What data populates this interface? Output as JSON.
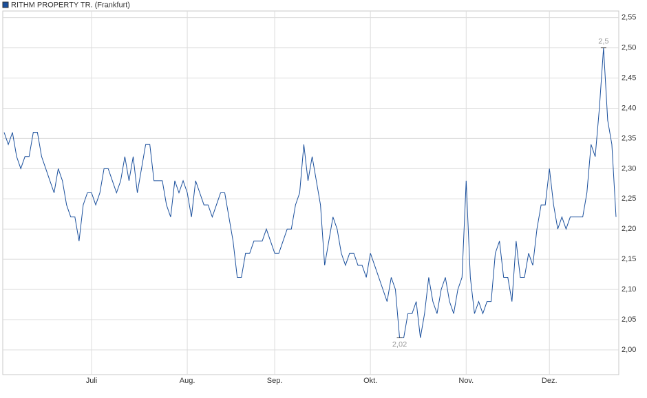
{
  "chart_data": {
    "type": "line",
    "series": [
      {
        "name": "RITHM PROPERTY TR. (Frankfurt)",
        "color": "#1a4f9c",
        "values": [
          2.36,
          2.34,
          2.36,
          2.32,
          2.3,
          2.32,
          2.32,
          2.36,
          2.36,
          2.32,
          2.3,
          2.28,
          2.26,
          2.3,
          2.28,
          2.24,
          2.22,
          2.22,
          2.18,
          2.24,
          2.26,
          2.26,
          2.24,
          2.26,
          2.3,
          2.3,
          2.28,
          2.26,
          2.28,
          2.32,
          2.28,
          2.32,
          2.26,
          2.3,
          2.34,
          2.34,
          2.28,
          2.28,
          2.28,
          2.24,
          2.22,
          2.28,
          2.26,
          2.28,
          2.26,
          2.22,
          2.28,
          2.26,
          2.24,
          2.24,
          2.22,
          2.24,
          2.26,
          2.26,
          2.22,
          2.18,
          2.12,
          2.12,
          2.16,
          2.16,
          2.18,
          2.18,
          2.18,
          2.2,
          2.18,
          2.16,
          2.16,
          2.18,
          2.2,
          2.2,
          2.24,
          2.26,
          2.34,
          2.28,
          2.32,
          2.28,
          2.24,
          2.14,
          2.18,
          2.22,
          2.2,
          2.16,
          2.14,
          2.16,
          2.16,
          2.14,
          2.14,
          2.12,
          2.16,
          2.14,
          2.12,
          2.1,
          2.08,
          2.12,
          2.1,
          2.02,
          2.02,
          2.06,
          2.06,
          2.08,
          2.02,
          2.06,
          2.12,
          2.08,
          2.06,
          2.1,
          2.12,
          2.08,
          2.06,
          2.1,
          2.12,
          2.28,
          2.12,
          2.06,
          2.08,
          2.06,
          2.08,
          2.08,
          2.16,
          2.18,
          2.12,
          2.12,
          2.08,
          2.18,
          2.12,
          2.12,
          2.16,
          2.14,
          2.2,
          2.24,
          2.24,
          2.3,
          2.24,
          2.2,
          2.22,
          2.2,
          2.22,
          2.22,
          2.22,
          2.22,
          2.26,
          2.34,
          2.32,
          2.4,
          2.5,
          2.38,
          2.34,
          2.22
        ],
        "value_labels": [
          null,
          null,
          null,
          null,
          null,
          null,
          null,
          null,
          null,
          null,
          null,
          null,
          null,
          null,
          null,
          null,
          null,
          null,
          null,
          null,
          null,
          null,
          null,
          null,
          null,
          null,
          null,
          null,
          null,
          null,
          null,
          null,
          null,
          null,
          null,
          null,
          null,
          null,
          null,
          null,
          null,
          null,
          null,
          null,
          null,
          null,
          null,
          null,
          null,
          null,
          null,
          null,
          null,
          null,
          null,
          null,
          null,
          null,
          null,
          null,
          null,
          null,
          null,
          null,
          null,
          null,
          null,
          null,
          null,
          null,
          null,
          null,
          null,
          null,
          null,
          null,
          null,
          null,
          null,
          null,
          null,
          null,
          null,
          null,
          null,
          null,
          null,
          null,
          null,
          null,
          null,
          null,
          null,
          null,
          null,
          "2,02",
          null,
          null,
          null,
          null,
          null,
          null,
          null,
          null,
          null,
          null,
          null,
          null,
          null,
          null,
          null,
          null,
          null,
          null,
          null,
          null,
          null,
          null,
          null,
          null,
          null,
          null,
          null,
          null,
          null,
          null,
          null,
          null,
          null,
          null,
          null,
          null,
          null,
          null,
          null,
          null,
          null,
          null,
          null,
          null,
          null,
          null,
          null,
          null,
          "2,5",
          null,
          null,
          null
        ]
      }
    ],
    "categories": [
      null,
      null,
      null,
      null,
      null,
      null,
      null,
      null,
      null,
      null,
      null,
      null,
      null,
      null,
      null,
      null,
      null,
      null,
      null,
      null,
      null,
      "Juli",
      null,
      null,
      null,
      null,
      null,
      null,
      null,
      null,
      null,
      null,
      null,
      null,
      null,
      null,
      null,
      null,
      null,
      null,
      null,
      null,
      null,
      null,
      "Aug.",
      null,
      null,
      null,
      null,
      null,
      null,
      null,
      null,
      null,
      null,
      null,
      null,
      null,
      null,
      null,
      null,
      null,
      null,
      null,
      null,
      "Sep.",
      null,
      null,
      null,
      null,
      null,
      null,
      null,
      null,
      null,
      null,
      null,
      null,
      null,
      null,
      null,
      null,
      null,
      null,
      null,
      null,
      null,
      null,
      "Okt.",
      null,
      null,
      null,
      null,
      null,
      null,
      null,
      null,
      null,
      null,
      null,
      null,
      null,
      null,
      null,
      null,
      null,
      null,
      null,
      null,
      null,
      null,
      "Nov.",
      null,
      null,
      null,
      null,
      null,
      null,
      null,
      null,
      null,
      null,
      null,
      null,
      null,
      null,
      null,
      null,
      null,
      null,
      null,
      "Dez.",
      null,
      null,
      null,
      null,
      null,
      null,
      null,
      null,
      null,
      null,
      null,
      null,
      null,
      null,
      null,
      null
    ],
    "ylim": [
      1.959,
      2.561
    ],
    "yticks": [
      {
        "value": 2.0,
        "label": "2,00"
      },
      {
        "value": 2.05,
        "label": "2,05"
      },
      {
        "value": 2.1,
        "label": "2,10"
      },
      {
        "value": 2.15,
        "label": "2,15"
      },
      {
        "value": 2.2,
        "label": "2,20"
      },
      {
        "value": 2.25,
        "label": "2,25"
      },
      {
        "value": 2.3,
        "label": "2,30"
      },
      {
        "value": 2.35,
        "label": "2,35"
      },
      {
        "value": 2.4,
        "label": "2,40"
      },
      {
        "value": 2.45,
        "label": "2,45"
      },
      {
        "value": 2.5,
        "label": "2,50"
      },
      {
        "value": 2.55,
        "label": "2,55"
      }
    ],
    "grid": true
  }
}
